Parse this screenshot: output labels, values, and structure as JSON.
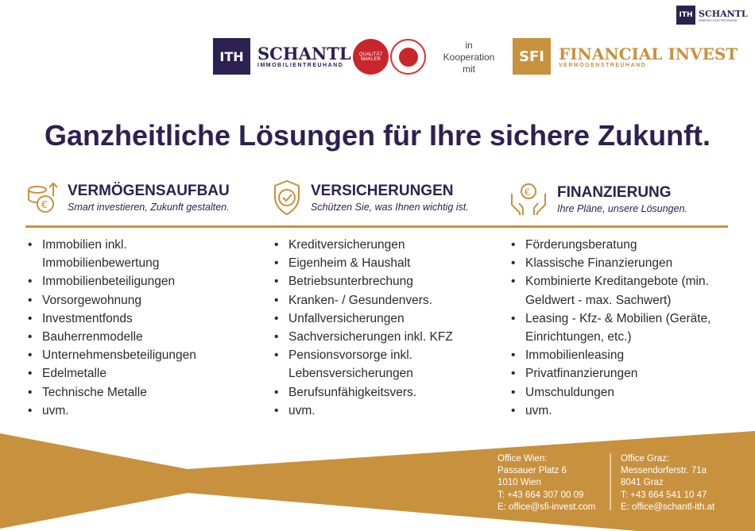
{
  "header": {
    "corner_logo": {
      "mark": "ITH",
      "name": "SCHANTL",
      "subtitle": "IMMOBILIENTREUHAND"
    },
    "schantl_logo": {
      "mark": "ITH",
      "name": "SCHANTL",
      "subtitle": "IMMOBILIENTREUHAND"
    },
    "badges": [
      {
        "text": "QUALITÄT MAKLER"
      },
      {
        "text": "Austrian eagle seal"
      }
    ],
    "cooperation": [
      "in",
      "Kooperation",
      "mit"
    ],
    "sfi_logo": {
      "mark": "SFI",
      "name": "FINANCIAL INVEST",
      "subtitle": "VERMÖGENSTREUHAND"
    }
  },
  "title": "Ganzheitliche Lösungen für Ihre sichere Zukunft.",
  "colors": {
    "navy": "#2d2152",
    "gold": "#c8913e"
  },
  "columns": [
    {
      "icon": "coins-euro-icon",
      "heading": "VERMÖGENSAUFBAU",
      "subheading": "Smart investieren, Zukunft gestalten.",
      "items": [
        "Immobilien inkl. Immobilienbewertung",
        "Immobilienbeteiligungen",
        "Vorsorgewohnung",
        "Investmentfonds",
        "Bauherrenmodelle",
        "Unternehmensbeteiligungen",
        "Edelmetalle",
        "Technische Metalle",
        "uvm."
      ]
    },
    {
      "icon": "shield-check-icon",
      "heading": "VERSICHERUNGEN",
      "subheading": "Schützen Sie, was Ihnen wichtig ist.",
      "items": [
        "Kreditversicherungen",
        "Eigenheim & Haushalt",
        "Betriebsunterbrechung",
        "Kranken- / Gesundenvers.",
        "Unfallversicherungen",
        "Sachversicherungen inkl. KFZ",
        "Pensionsvorsorge inkl. Lebensversicherungen",
        "Berufsunfähigkeitsvers.",
        "uvm."
      ]
    },
    {
      "icon": "hands-euro-icon",
      "heading": "FINANZIERUNG",
      "subheading": "Ihre Pläne, unsere Lösungen.",
      "items": [
        "Förderungsberatung",
        "Klassische Finanzierungen",
        "Kombinierte Kreditangebote (min. Geldwert - max. Sachwert)",
        "Leasing - Kfz- & Mobilien (Geräte, Einrichtungen, etc.)",
        "Immobilienleasing",
        "Privatfinanzierungen",
        "Umschuldungen",
        "uvm."
      ]
    }
  ],
  "footer": {
    "wien": [
      "Office Wien:",
      "Passauer Platz 6",
      "1010 Wien",
      "T: +43 664 307 00 09",
      "E: office@sfi-invest.com"
    ],
    "graz": [
      "Office Graz:",
      "Messendorferstr. 71a",
      "8041 Graz",
      "T: +43 664 541 10 47",
      "E: office@schantl-ith.at"
    ]
  }
}
